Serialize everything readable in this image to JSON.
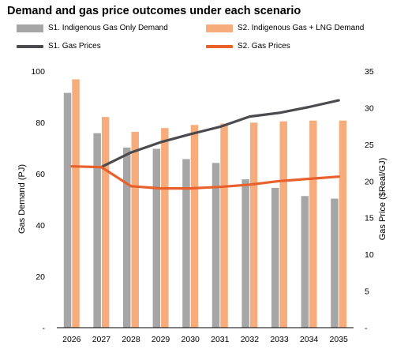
{
  "chart_data": {
    "type": "bar",
    "title": "Demand and gas price outcomes under each scenario",
    "categories": [
      "2026",
      "2027",
      "2028",
      "2029",
      "2030",
      "2031",
      "2032",
      "2033",
      "2034",
      "2035"
    ],
    "series": [
      {
        "name": "S1. Indigenous Gas Only Demand",
        "type": "bar",
        "axis": "left",
        "color": "#a6a6a6",
        "values": [
          91.5,
          75.8,
          70.2,
          69.7,
          65.7,
          64.2,
          57.8,
          54.5,
          51.3,
          50.3
        ]
      },
      {
        "name": "S2. Indigenous Gas + LNG Demand",
        "type": "bar",
        "axis": "left",
        "color": "#f6ad7b",
        "values": [
          96.8,
          82.1,
          76.3,
          77.8,
          79.0,
          79.5,
          79.9,
          80.4,
          80.7,
          80.7
        ]
      },
      {
        "name": "S1. Gas Prices",
        "type": "line",
        "axis": "right",
        "color": "#4a4a4f",
        "values": [
          null,
          21.9,
          23.9,
          25.3,
          26.4,
          27.4,
          28.8,
          29.3,
          30.1,
          31.0
        ]
      },
      {
        "name": "S2. Gas Prices",
        "type": "line",
        "axis": "right",
        "color": "#e8602c",
        "values": [
          22.0,
          21.9,
          19.3,
          19.0,
          19.0,
          19.2,
          19.5,
          20.0,
          20.3,
          20.6
        ]
      }
    ],
    "ylabel": "Gas Demand (PJ)",
    "y2label": "Gas Price ($Real/GJ)",
    "ylim": [
      0,
      100
    ],
    "y2lim": [
      0,
      35
    ],
    "yticks": [
      "-",
      "20",
      "40",
      "60",
      "80",
      "100"
    ],
    "y2ticks": [
      "-",
      "5",
      "10",
      "15",
      "20",
      "25",
      "30",
      "35"
    ],
    "grid": false,
    "legend_position": "top"
  }
}
